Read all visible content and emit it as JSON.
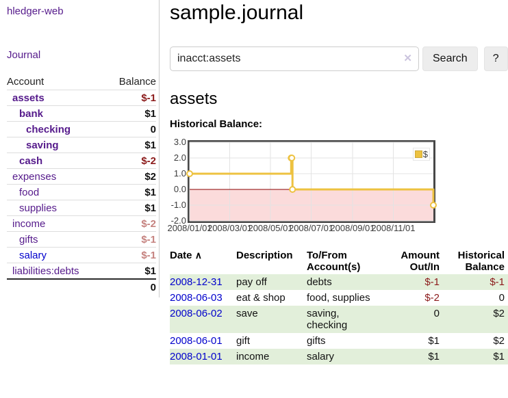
{
  "colors": {
    "accent_purple": "#551a8b",
    "link_blue": "#0000cc",
    "negative_strong": "#8b1a1a",
    "negative_soft": "#c5827f",
    "row_green": "#e2efda",
    "chart_line": "#edc240",
    "chart_negative_fill": "#fbdbdb",
    "zero_line": "#8b0000",
    "grid_line": "#e3e3e3"
  },
  "sidebar": {
    "brand": "hledger-web",
    "journal_link": "Journal",
    "accounts": {
      "header_account": "Account",
      "header_balance": "Balance",
      "rows": [
        {
          "name": "assets",
          "depth": 1,
          "bold": true,
          "balance": "$-1",
          "balance_class": "neg-strong"
        },
        {
          "name": "bank",
          "depth": 2,
          "bold": true,
          "balance": "$1",
          "balance_class": "pos"
        },
        {
          "name": "checking",
          "depth": 3,
          "bold": true,
          "balance": "0",
          "balance_class": "pos"
        },
        {
          "name": "saving",
          "depth": 3,
          "bold": true,
          "balance": "$1",
          "balance_class": "pos"
        },
        {
          "name": "cash",
          "depth": 2,
          "bold": true,
          "balance": "$-2",
          "balance_class": "neg-strong"
        },
        {
          "name": "expenses",
          "depth": 1,
          "bold": false,
          "balance": "$2",
          "balance_class": "pos"
        },
        {
          "name": "food",
          "depth": 2,
          "bold": false,
          "balance": "$1",
          "balance_class": "pos"
        },
        {
          "name": "supplies",
          "depth": 2,
          "bold": false,
          "balance": "$1",
          "balance_class": "pos"
        },
        {
          "name": "income",
          "depth": 1,
          "bold": false,
          "balance": "$-2",
          "balance_class": "neg-soft"
        },
        {
          "name": "gifts",
          "depth": 2,
          "bold": false,
          "balance": "$-1",
          "balance_class": "neg-soft"
        },
        {
          "name": "salary",
          "depth": 2,
          "bold": false,
          "link_blue": true,
          "balance": "$-1",
          "balance_class": "neg-soft"
        },
        {
          "name": "liabilities:debts",
          "depth": 1,
          "bold": false,
          "balance": "$1",
          "balance_class": "pos"
        }
      ],
      "total": "0"
    }
  },
  "main": {
    "title": "sample.journal",
    "search": {
      "value": "inacct:assets",
      "clear_icon": "✕",
      "search_button": "Search",
      "help_button": "?"
    },
    "account_heading": "assets",
    "chart_title": "Historical Balance:"
  },
  "chart_data": {
    "type": "line",
    "step": true,
    "title": "Historical Balance",
    "series": [
      {
        "name": "$",
        "color": "#edc240",
        "points": [
          [
            "2008-01-01",
            1.0
          ],
          [
            "2008-06-01",
            2.0
          ],
          [
            "2008-06-02",
            2.0
          ],
          [
            "2008-06-03",
            0.0
          ],
          [
            "2008-12-31",
            -1.0
          ]
        ]
      }
    ],
    "xlim": [
      "2008-01-01",
      "2008-12-31"
    ],
    "ylim": [
      -2.0,
      3.0
    ],
    "xtick_labels": [
      "2008/01/01",
      "2008/03/01",
      "2008/05/01",
      "2008/07/01",
      "2008/09/01",
      "2008/11/01"
    ],
    "ytick_values": [
      3.0,
      2.0,
      1.0,
      0.0,
      -1.0,
      -2.0
    ],
    "grid": true,
    "legend_position": "top-right",
    "negative_region_fill": "#fbdbdb",
    "zero_line_color": "#8b0000",
    "marker": "open-circle"
  },
  "register": {
    "headers": {
      "date": "Date",
      "description": "Description",
      "accounts": "To/From Account(s)",
      "amount": "Amount Out/In",
      "balance": "Historical Balance"
    },
    "sort_icon": "∧",
    "rows": [
      {
        "date": "2008-12-31",
        "description": "pay off",
        "accounts": "debts",
        "amount": "$-1",
        "amount_neg": true,
        "balance": "$-1",
        "balance_neg": true,
        "shaded": true
      },
      {
        "date": "2008-06-03",
        "description": "eat & shop",
        "accounts": "food, supplies",
        "amount": "$-2",
        "amount_neg": true,
        "balance": "0",
        "balance_neg": false,
        "shaded": false
      },
      {
        "date": "2008-06-02",
        "description": "save",
        "accounts": "saving, checking",
        "amount": "0",
        "amount_neg": false,
        "balance": "$2",
        "balance_neg": false,
        "shaded": true
      },
      {
        "date": "2008-06-01",
        "description": "gift",
        "accounts": "gifts",
        "amount": "$1",
        "amount_neg": false,
        "balance": "$2",
        "balance_neg": false,
        "shaded": false
      },
      {
        "date": "2008-01-01",
        "description": "income",
        "accounts": "salary",
        "amount": "$1",
        "amount_neg": false,
        "balance": "$1",
        "balance_neg": false,
        "shaded": true
      }
    ]
  }
}
